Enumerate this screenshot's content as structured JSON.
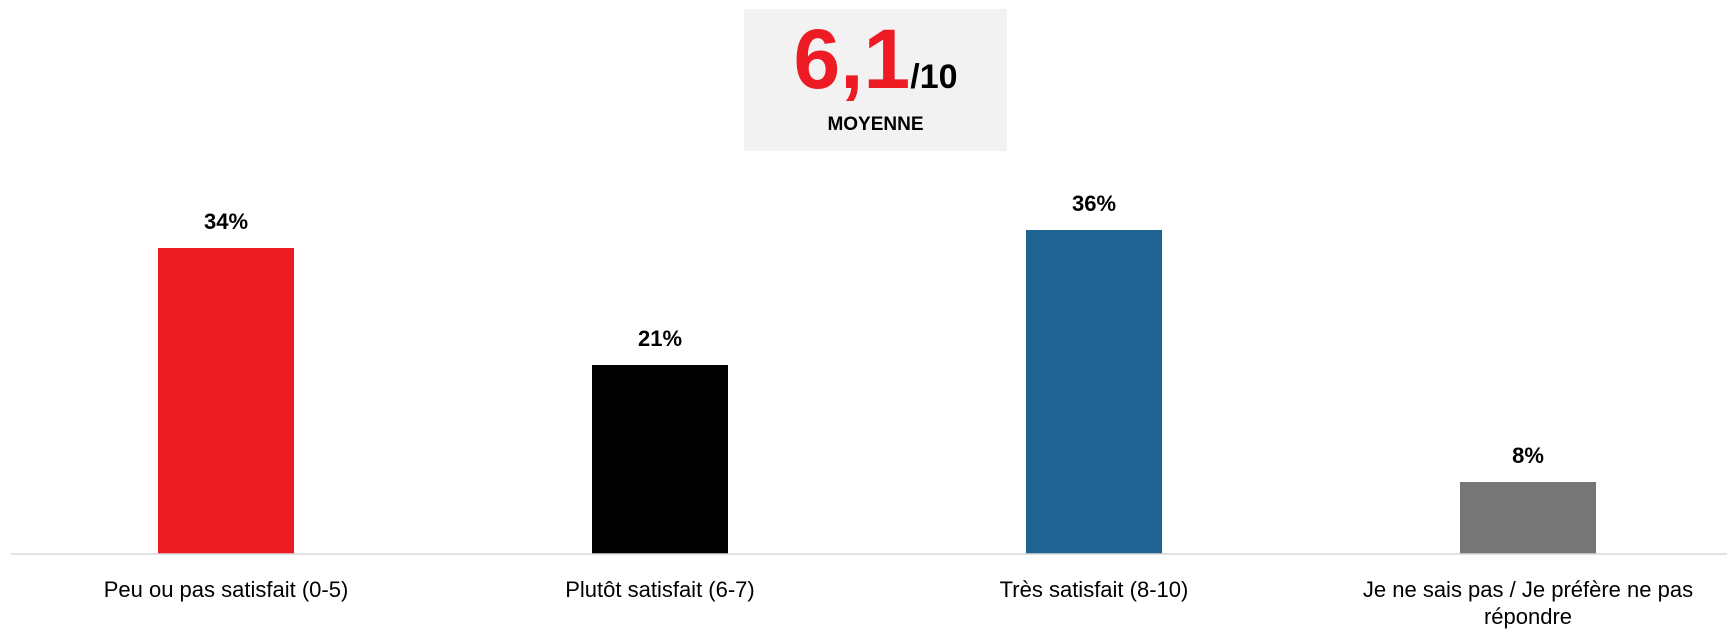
{
  "chart_data": {
    "type": "bar",
    "annotation": {
      "score": "6,1",
      "score_suffix": "/10",
      "score_label": "MOYENNE"
    },
    "categories": [
      "Peu ou pas satisfait (0-5)",
      "Plutôt satisfait (6-7)",
      "Très satisfait (8-10)",
      "Je ne sais pas / Je préfère ne pas répondre"
    ],
    "values": [
      34,
      21,
      36,
      8
    ],
    "value_labels": [
      "34%",
      "21%",
      "36%",
      "8%"
    ],
    "colors": [
      "#ed1c24",
      "#000000",
      "#1f6392",
      "#767676"
    ],
    "ylim": [
      0,
      40
    ]
  }
}
